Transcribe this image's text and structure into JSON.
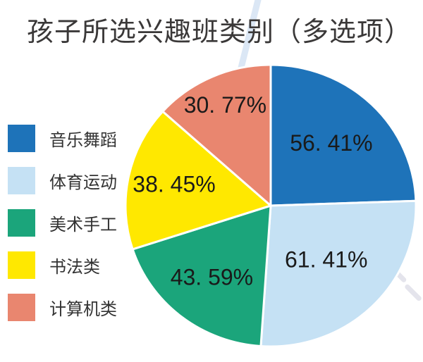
{
  "title": "孩子所选兴趣班类别（多选项）",
  "colors": {
    "background": "#ffffff",
    "title_text": "#3a3838",
    "percent_label_text": "#1a1a1a",
    "legend_label_text": "#333333",
    "slice_border": "#ffffff",
    "watermark_stripe": "#dbe7f5",
    "watermark_dash": "#e4e4ec"
  },
  "legend": {
    "position": "left",
    "items": [
      {
        "label": "音乐舞蹈",
        "color": "#1E73B9"
      },
      {
        "label": "体育运动",
        "color": "#C5E1F4"
      },
      {
        "label": "美术手工",
        "color": "#1BA57B"
      },
      {
        "label": "书法类",
        "color": "#FFE800"
      },
      {
        "label": "计算机类",
        "color": "#E9866F"
      }
    ]
  },
  "chart_data": {
    "type": "pie",
    "title": "孩子所选兴趣班类别（多选项）",
    "unit": "%",
    "start_angle_deg": 0,
    "direction": "clockwise",
    "legend_position": "left",
    "slices": [
      {
        "slug": "music-dance",
        "category": "音乐舞蹈",
        "value": 56.41,
        "display_label": "56. 41%",
        "color": "#1E73B9",
        "label_r": 0.6
      },
      {
        "slug": "sports",
        "category": "体育运动",
        "value": 61.41,
        "display_label": "61. 41%",
        "color": "#C5E1F4",
        "label_r": 0.55
      },
      {
        "slug": "art-craft",
        "category": "美术手工",
        "value": 43.59,
        "display_label": "43. 59%",
        "color": "#1BA57B",
        "label_r": 0.66
      },
      {
        "slug": "calligraphy",
        "category": "书法类",
        "value": 38.45,
        "display_label": "38. 45%",
        "color": "#FFE800",
        "label_r": 0.68
      },
      {
        "slug": "computer",
        "category": "计算机类",
        "value": 30.77,
        "display_label": "30. 77%",
        "color": "#E9866F",
        "label_r": 0.77
      }
    ]
  }
}
